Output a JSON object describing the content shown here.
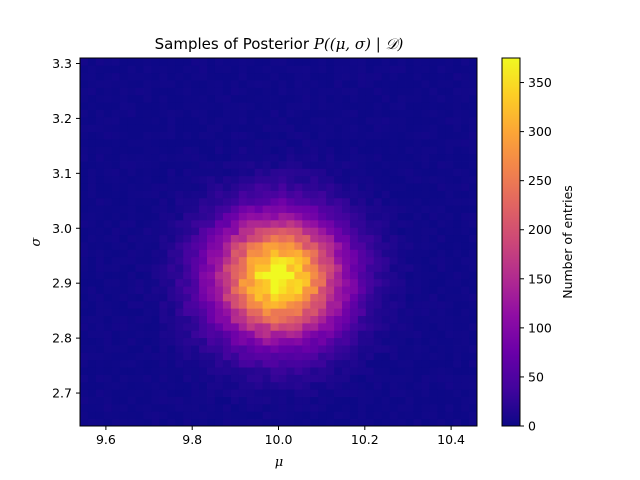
{
  "chart_data": {
    "type": "heatmap",
    "title": {
      "text": "Samples of Posterior ",
      "math": "P((μ, σ) | 𝒟)"
    },
    "xlabel": "μ",
    "ylabel": "σ",
    "colorbar_label": "Number of entries",
    "colormap": "plasma",
    "xlim": [
      9.54,
      10.46
    ],
    "ylim": [
      2.64,
      3.31
    ],
    "clim": [
      0,
      375
    ],
    "x_ticks": [
      9.6,
      9.8,
      10.0,
      10.2,
      10.4
    ],
    "x_tick_labels": [
      "9.6",
      "9.8",
      "10.0",
      "10.2",
      "10.4"
    ],
    "y_ticks": [
      2.7,
      2.8,
      2.9,
      3.0,
      3.1,
      3.2,
      3.3
    ],
    "y_tick_labels": [
      "2.7",
      "2.8",
      "2.9",
      "3.0",
      "3.1",
      "3.2",
      "3.3"
    ],
    "cbar_ticks": [
      0,
      50,
      100,
      150,
      200,
      250,
      300,
      350
    ],
    "cbar_tick_labels": [
      "0",
      "50",
      "100",
      "150",
      "200",
      "250",
      "300",
      "350"
    ],
    "bins": {
      "nx": 50,
      "ny": 50
    },
    "distribution": {
      "peak_count": 375,
      "mu_center": 10.0,
      "mu_sd": 0.1,
      "sigma_center": 2.91,
      "sigma_sd": 0.075
    },
    "grid": false
  }
}
